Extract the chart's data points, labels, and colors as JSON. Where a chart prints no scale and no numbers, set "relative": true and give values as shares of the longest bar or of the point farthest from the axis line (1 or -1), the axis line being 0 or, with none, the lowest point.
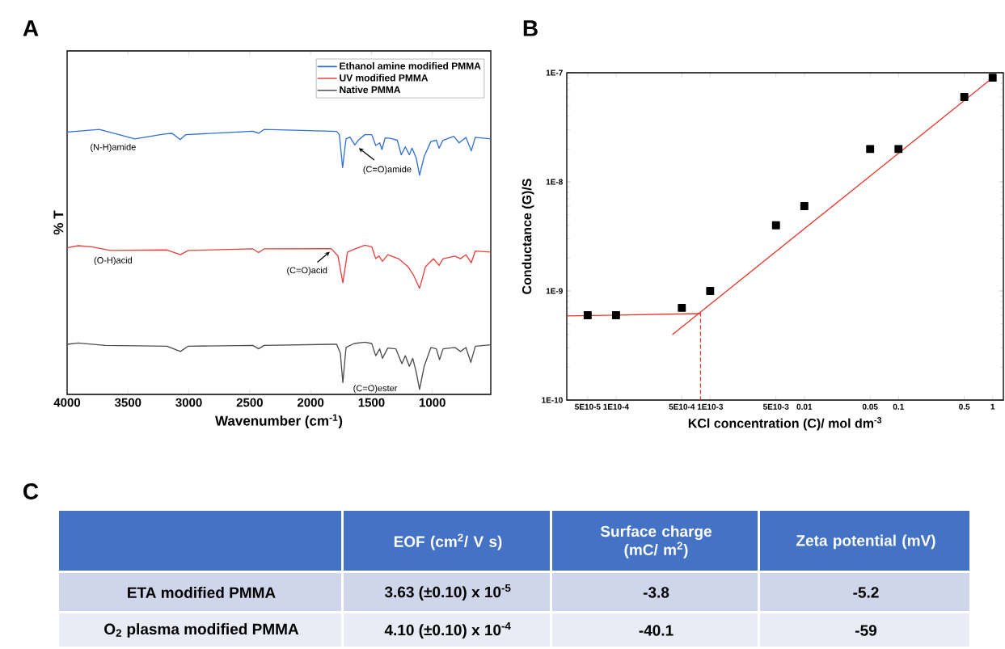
{
  "chart_data": [
    {
      "type": "line",
      "title": "A",
      "xlabel": "Wavenumber (cm$^{-1}$)",
      "ylabel": "% T",
      "relative": true,
      "xlim": [
        4000,
        520
      ],
      "xticks": [
        4000,
        3500,
        3000,
        2500,
        2000,
        1500,
        1000
      ],
      "legend": "top right",
      "marker": "none",
      "line_style": "solid",
      "series": [
        {
          "name": "Ethanol amine modified PMMA",
          "color": "#2f6fd6",
          "x": [
            4000,
            3735,
            3443,
            3204,
            3137,
            3071,
            3025,
            2474,
            2427,
            2381,
            1830,
            1786,
            1764,
            1737,
            1709,
            1677,
            1636,
            1609,
            1554,
            1498,
            1465,
            1432,
            1414,
            1388,
            1344,
            1288,
            1255,
            1222,
            1189,
            1167,
            1133,
            1105,
            1067,
            1012,
            967,
            945,
            912,
            824,
            780,
            724,
            680,
            647,
            520
          ],
          "values": [
            0.99,
            1.0,
            0.964,
            0.982,
            0.985,
            0.961,
            0.98,
            0.993,
            0.985,
            1.0,
            0.993,
            0.992,
            0.98,
            0.856,
            0.964,
            0.971,
            0.941,
            0.959,
            0.98,
            0.98,
            0.939,
            0.949,
            0.924,
            0.968,
            0.966,
            0.959,
            0.904,
            0.934,
            0.904,
            0.929,
            0.893,
            0.827,
            0.898,
            0.954,
            0.959,
            0.929,
            0.959,
            0.974,
            0.949,
            0.97,
            0.919,
            0.97,
            0.964
          ]
        },
        {
          "name": "UV modified PMMA",
          "color": "#e8413c",
          "x": [
            4000,
            3909,
            3799,
            3644,
            3179,
            3069,
            3005,
            2474,
            2427,
            2383,
            1830,
            1775,
            1735,
            1697,
            1642,
            1554,
            1498,
            1465,
            1437,
            1410,
            1366,
            1278,
            1200,
            1156,
            1105,
            1056,
            990,
            945,
            912,
            813,
            769,
            724,
            680,
            647,
            520
          ],
          "values": [
            0.553,
            0.561,
            0.557,
            0.543,
            0.545,
            0.527,
            0.543,
            0.549,
            0.535,
            0.549,
            0.55,
            0.522,
            0.421,
            0.537,
            0.548,
            0.563,
            0.557,
            0.512,
            0.522,
            0.502,
            0.527,
            0.512,
            0.482,
            0.451,
            0.4,
            0.482,
            0.512,
            0.487,
            0.512,
            0.522,
            0.512,
            0.527,
            0.497,
            0.541,
            0.537
          ]
        },
        {
          "name": "Native PMMA",
          "color": "#4d4d4d",
          "x": [
            4000,
            3909,
            3688,
            3179,
            3069,
            3005,
            2474,
            2427,
            2383,
            1830,
            1786,
            1756,
            1735,
            1709,
            1642,
            1554,
            1498,
            1465,
            1432,
            1410,
            1366,
            1300,
            1250,
            1222,
            1189,
            1161,
            1133,
            1105,
            1067,
            1012,
            967,
            941,
            912,
            813,
            769,
            724,
            684,
            647,
            520
          ],
          "values": [
            0.189,
            0.194,
            0.185,
            0.182,
            0.162,
            0.182,
            0.185,
            0.172,
            0.185,
            0.189,
            0.189,
            0.156,
            0.045,
            0.177,
            0.192,
            0.197,
            0.192,
            0.146,
            0.172,
            0.136,
            0.175,
            0.172,
            0.116,
            0.146,
            0.106,
            0.136,
            0.085,
            0.019,
            0.106,
            0.177,
            0.172,
            0.131,
            0.172,
            0.177,
            0.162,
            0.177,
            0.121,
            0.182,
            0.187
          ]
        }
      ],
      "annotations": [
        {
          "text": "(N-H)amide",
          "x": 3443,
          "y": 0.964
        },
        {
          "text": "(C=O)amide",
          "x": 1636,
          "y": 0.941
        },
        {
          "text": "(O-H)acid",
          "x": 3443,
          "y": 0.543
        },
        {
          "text": "(C=O)acid",
          "x": 1817,
          "y": 0.548
        },
        {
          "text": "(C=O)ester",
          "x": 1735,
          "y": 0.045
        }
      ]
    },
    {
      "type": "scatter",
      "title": "B",
      "xlabel": "KCl concentration (C)/ mol dm$^{-3}$",
      "ylabel": "Conductance (G)/S",
      "log": "xy",
      "legend": false,
      "xlim": [
        3e-05,
        1.3
      ],
      "ylim": [
        1e-10,
        1e-07
      ],
      "xticks": [
        {
          "value": 5e-05,
          "label": "5E10-5"
        },
        {
          "value": 0.0001,
          "label": "1E10-4"
        },
        {
          "value": 0.0005,
          "label": "5E10-4"
        },
        {
          "value": 0.001,
          "label": "1E10-3"
        },
        {
          "value": 0.005,
          "label": "5E10-3"
        },
        {
          "value": 0.01,
          "label": "0.01"
        },
        {
          "value": 0.05,
          "label": "0.05"
        },
        {
          "value": 0.1,
          "label": "0.1"
        },
        {
          "value": 0.5,
          "label": "0.5"
        },
        {
          "value": 1,
          "label": "1"
        }
      ],
      "yticks": [
        {
          "value": 1e-10,
          "label": "1E-10"
        },
        {
          "value": 1e-09,
          "label": "1E-9"
        },
        {
          "value": 1e-08,
          "label": "1E-8"
        },
        {
          "value": 1e-07,
          "label": "1E-7"
        }
      ],
      "series": [
        {
          "type": "scatter",
          "marker": "square",
          "color": "#000000",
          "x": [
            5e-05,
            0.0001,
            0.0005,
            0.001,
            0.005,
            0.01,
            0.05,
            0.1,
            0.5,
            1
          ],
          "values": [
            6e-10,
            6e-10,
            7e-10,
            1e-09,
            4e-09,
            6e-09,
            2e-08,
            2e-08,
            6e-08,
            9e-08
          ]
        },
        {
          "type": "line",
          "marker": "none",
          "line_style": "solid",
          "color": "#e8382c",
          "x": [
            3e-05,
            0.00079
          ],
          "values": [
            5.9e-10,
            6.2e-10
          ]
        },
        {
          "type": "line",
          "marker": "none",
          "line_style": "solid",
          "color": "#e8382c",
          "x": [
            0.0004,
            1
          ],
          "values": [
            4e-10,
            9e-08
          ]
        },
        {
          "type": "line",
          "marker": "none",
          "line_style": "dashed",
          "color": "#e8382c",
          "x": [
            0.00079,
            0.00079
          ],
          "values": [
            1e-10,
            6.2e-10
          ]
        }
      ]
    },
    {
      "type": "other",
      "title": "C",
      "categories": [
        null,
        "EOF (cm$^{2}$/ V s)",
        "Surface charge (mC/ m$^{2}$)",
        "Zeta potential (mV)"
      ],
      "y_categories": [
        "ETA modified PMMA",
        "O$_{2}$ plasma modified PMMA"
      ],
      "cell_labels": [
        [
          "3.63 (±0.10) x 10$^{-5}$",
          "-3.8",
          "-5.2"
        ],
        [
          "4.10 (±0.10) x 10$^{-4}$",
          "-40.1",
          "-59"
        ]
      ]
    }
  ]
}
